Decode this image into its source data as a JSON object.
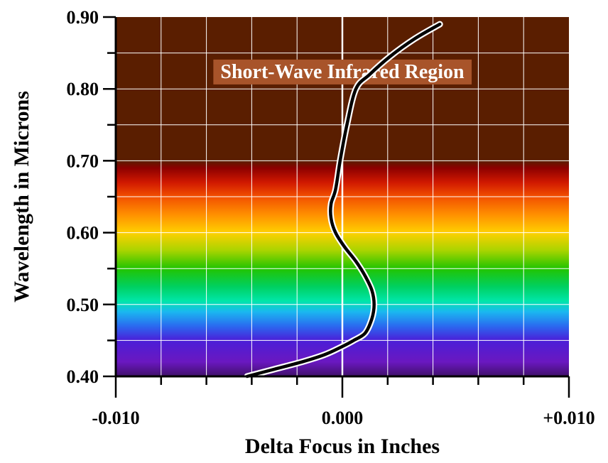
{
  "chart_data": {
    "type": "line",
    "title": "",
    "xlabel": "Delta Focus in Inches",
    "ylabel": "Wavelength in Microns",
    "xlim": [
      -0.01,
      0.01
    ],
    "ylim": [
      0.4,
      0.9
    ],
    "x_ticks": [
      -0.01,
      0.0,
      0.01
    ],
    "x_tick_labels": [
      "-0.010",
      "0.000",
      "+0.010"
    ],
    "y_ticks": [
      0.4,
      0.5,
      0.6,
      0.7,
      0.8,
      0.9
    ],
    "y_tick_labels": [
      "0.40",
      "0.50",
      "0.60",
      "0.70",
      "0.80",
      "0.90"
    ],
    "x_grid_step": 0.002,
    "y_grid_step": 0.05,
    "grid": true,
    "annotation": "Short-Wave Infrared Region",
    "background_bands": {
      "infrared_color": "#5a1e00",
      "visible_range": [
        0.4,
        0.7
      ],
      "spectrum_stops": [
        {
          "wavelength": 0.4,
          "color": "#40106a"
        },
        {
          "wavelength": 0.42,
          "color": "#6a18c0"
        },
        {
          "wavelength": 0.45,
          "color": "#4b1ed8"
        },
        {
          "wavelength": 0.47,
          "color": "#2a6af0"
        },
        {
          "wavelength": 0.49,
          "color": "#1ab8f0"
        },
        {
          "wavelength": 0.505,
          "color": "#00e6a8"
        },
        {
          "wavelength": 0.525,
          "color": "#00d060"
        },
        {
          "wavelength": 0.55,
          "color": "#22c400"
        },
        {
          "wavelength": 0.575,
          "color": "#a8d400"
        },
        {
          "wavelength": 0.6,
          "color": "#ffd000"
        },
        {
          "wavelength": 0.625,
          "color": "#ff9000"
        },
        {
          "wavelength": 0.65,
          "color": "#f25000"
        },
        {
          "wavelength": 0.67,
          "color": "#d01800"
        },
        {
          "wavelength": 0.69,
          "color": "#8c0000"
        },
        {
          "wavelength": 0.7,
          "color": "#5a1e00"
        }
      ]
    },
    "series": [
      {
        "color": "#000000",
        "x": [
          -0.0042,
          -0.003,
          -0.0018,
          -0.0008,
          -0.0001,
          0.0005,
          0.001,
          0.0013,
          0.0014,
          0.0013,
          0.001,
          0.0006,
          0.0001,
          -0.0003,
          -0.0005,
          -0.0005,
          -0.0003,
          -0.0001,
          0.0002,
          0.0006,
          0.0012,
          0.0021,
          0.0032,
          0.0043
        ],
        "y": [
          0.4,
          0.41,
          0.42,
          0.43,
          0.44,
          0.45,
          0.46,
          0.48,
          0.5,
          0.52,
          0.54,
          0.56,
          0.58,
          0.6,
          0.62,
          0.64,
          0.66,
          0.7,
          0.75,
          0.8,
          0.82,
          0.845,
          0.87,
          0.89
        ]
      }
    ]
  }
}
